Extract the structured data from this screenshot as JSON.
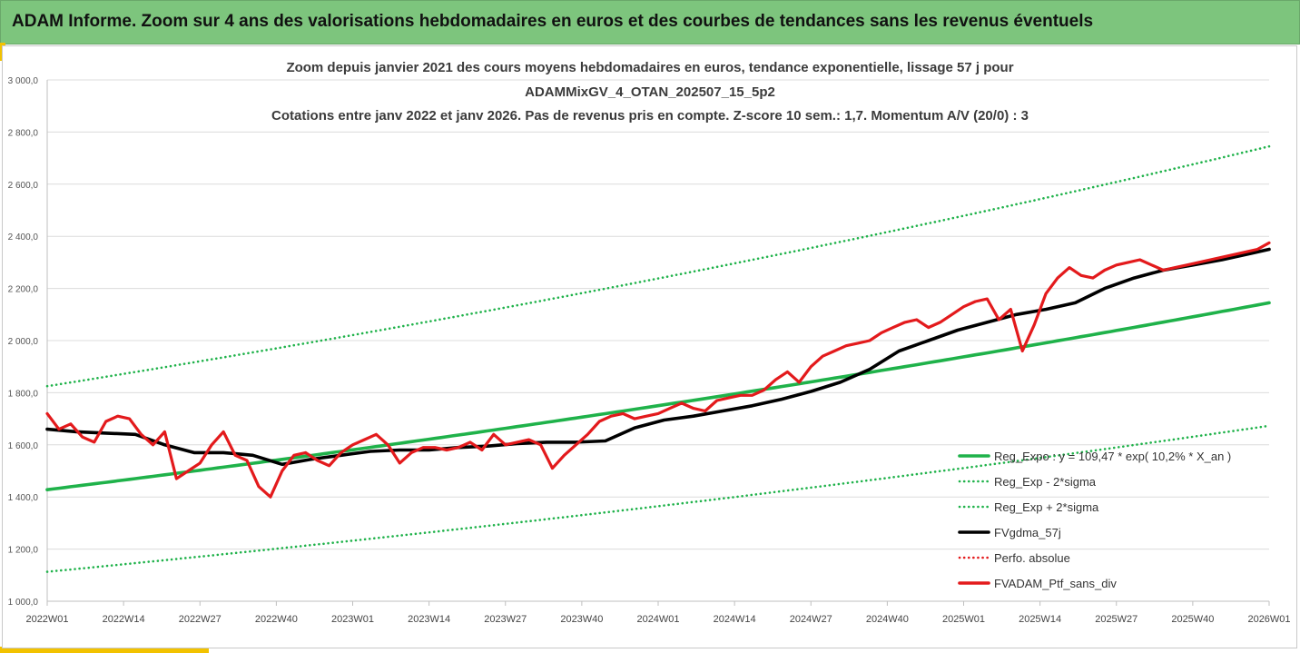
{
  "banner": {
    "title": "ADAM Informe. Zoom sur 4 ans des valorisations hebdomadaires en euros et des courbes de tendances sans les revenus éventuels"
  },
  "chart_data": {
    "type": "line",
    "title_lines": [
      "Zoom depuis janvier 2021 des cours moyens hebdomadaires  en euros, tendance exponentielle, lissage 57 j pour",
      "ADAMMixGV_4_OTAN_202507_15_5p2",
      "Cotations entre janv 2022 et janv 2026. Pas de revenus pris en compte. Z-score 10 sem.: 1,7. Momentum A/V (20/0) : 3"
    ],
    "ylim": [
      1000,
      3000
    ],
    "yticks": [
      1000,
      1200,
      1400,
      1600,
      1800,
      2000,
      2200,
      2400,
      2600,
      2800,
      3000
    ],
    "ytick_labels": [
      "1 000,0",
      "1 200,0",
      "1 400,0",
      "1 600,0",
      "1 800,0",
      "2 000,0",
      "2 200,0",
      "2 400,0",
      "2 600,0",
      "2 800,0",
      "3 000,0"
    ],
    "xtick_labels": [
      "2022W01",
      "2022W14",
      "2022W27",
      "2022W40",
      "2023W01",
      "2023W14",
      "2023W27",
      "2023W40",
      "2024W01",
      "2024W14",
      "2024W27",
      "2024W40",
      "2025W01",
      "2025W14",
      "2025W27",
      "2025W40",
      "2026W01"
    ],
    "xtick_week_index": [
      0,
      13,
      26,
      39,
      52,
      65,
      78,
      91,
      104,
      117,
      130,
      143,
      156,
      169,
      182,
      195,
      208
    ],
    "grid": "horizontal",
    "legend_position": "bottom-right",
    "series": [
      {
        "name": "Reg_Expo : y = 109,47 * exp( 10,2% *  X_an )",
        "style": "solid",
        "color": "#1fb24a",
        "x": [
          0,
          208
        ],
        "y": [
          1428,
          2145
        ],
        "interpolation": "exponential"
      },
      {
        "name": "Reg_Exp - 2*sigma",
        "style": "dotted",
        "color": "#1fb24a",
        "x": [
          0,
          208
        ],
        "y": [
          1113,
          1673
        ],
        "interpolation": "exponential"
      },
      {
        "name": "Reg_Exp + 2*sigma",
        "style": "dotted",
        "color": "#1fb24a",
        "x": [
          0,
          208
        ],
        "y": [
          1825,
          2745
        ],
        "interpolation": "exponential"
      },
      {
        "name": "FVgdma_57j",
        "style": "solid",
        "color": "#000000",
        "x": [
          0,
          5,
          10,
          15,
          20,
          25,
          30,
          35,
          40,
          45,
          50,
          55,
          60,
          65,
          70,
          75,
          80,
          85,
          90,
          95,
          100,
          105,
          110,
          115,
          120,
          125,
          130,
          135,
          140,
          145,
          150,
          155,
          160,
          165,
          170,
          175,
          180,
          185,
          190,
          195,
          200,
          205,
          208
        ],
        "y": [
          1660,
          1650,
          1645,
          1640,
          1600,
          1570,
          1570,
          1560,
          1525,
          1545,
          1560,
          1575,
          1580,
          1580,
          1590,
          1595,
          1605,
          1610,
          1610,
          1615,
          1665,
          1695,
          1710,
          1730,
          1750,
          1775,
          1805,
          1840,
          1890,
          1960,
          2000,
          2040,
          2070,
          2100,
          2120,
          2145,
          2200,
          2240,
          2270,
          2290,
          2310,
          2335,
          2350
        ]
      },
      {
        "name": "Perfo. absolue",
        "style": "dotted",
        "color": "#e31a1c",
        "x": [],
        "y": []
      },
      {
        "name": "FVADAM_Ptf_sans_div",
        "style": "solid",
        "color": "#e31a1c",
        "x": [
          0,
          2,
          4,
          6,
          8,
          10,
          12,
          14,
          16,
          18,
          20,
          22,
          24,
          26,
          28,
          30,
          32,
          34,
          36,
          38,
          40,
          42,
          44,
          46,
          48,
          50,
          52,
          54,
          56,
          58,
          60,
          62,
          64,
          66,
          68,
          70,
          72,
          74,
          76,
          78,
          80,
          82,
          84,
          86,
          88,
          90,
          92,
          94,
          96,
          98,
          100,
          102,
          104,
          106,
          108,
          110,
          112,
          114,
          116,
          118,
          120,
          122,
          124,
          126,
          128,
          130,
          132,
          134,
          136,
          138,
          140,
          142,
          144,
          146,
          148,
          150,
          152,
          154,
          156,
          158,
          160,
          162,
          164,
          166,
          168,
          170,
          172,
          174,
          176,
          178,
          180,
          182,
          184,
          186,
          188,
          190,
          192,
          194,
          196,
          198,
          200,
          202,
          204,
          206,
          208
        ],
        "y": [
          1720,
          1660,
          1680,
          1630,
          1610,
          1690,
          1710,
          1700,
          1640,
          1600,
          1650,
          1470,
          1500,
          1530,
          1600,
          1650,
          1560,
          1540,
          1440,
          1400,
          1500,
          1560,
          1570,
          1540,
          1520,
          1570,
          1600,
          1620,
          1640,
          1600,
          1530,
          1570,
          1590,
          1590,
          1580,
          1590,
          1610,
          1580,
          1640,
          1600,
          1610,
          1620,
          1600,
          1510,
          1560,
          1600,
          1640,
          1690,
          1710,
          1720,
          1700,
          1710,
          1720,
          1740,
          1760,
          1740,
          1730,
          1770,
          1780,
          1790,
          1790,
          1810,
          1850,
          1880,
          1840,
          1900,
          1940,
          1960,
          1980,
          1990,
          2000,
          2030,
          2050,
          2070,
          2080,
          2050,
          2070,
          2100,
          2130,
          2150,
          2160,
          2080,
          2120,
          1960,
          2060,
          2180,
          2240,
          2280,
          2250,
          2240,
          2270,
          2290,
          2300,
          2310,
          2290,
          2270,
          2280,
          2290,
          2300,
          2310,
          2320,
          2330,
          2340,
          2350,
          2375
        ]
      }
    ]
  }
}
